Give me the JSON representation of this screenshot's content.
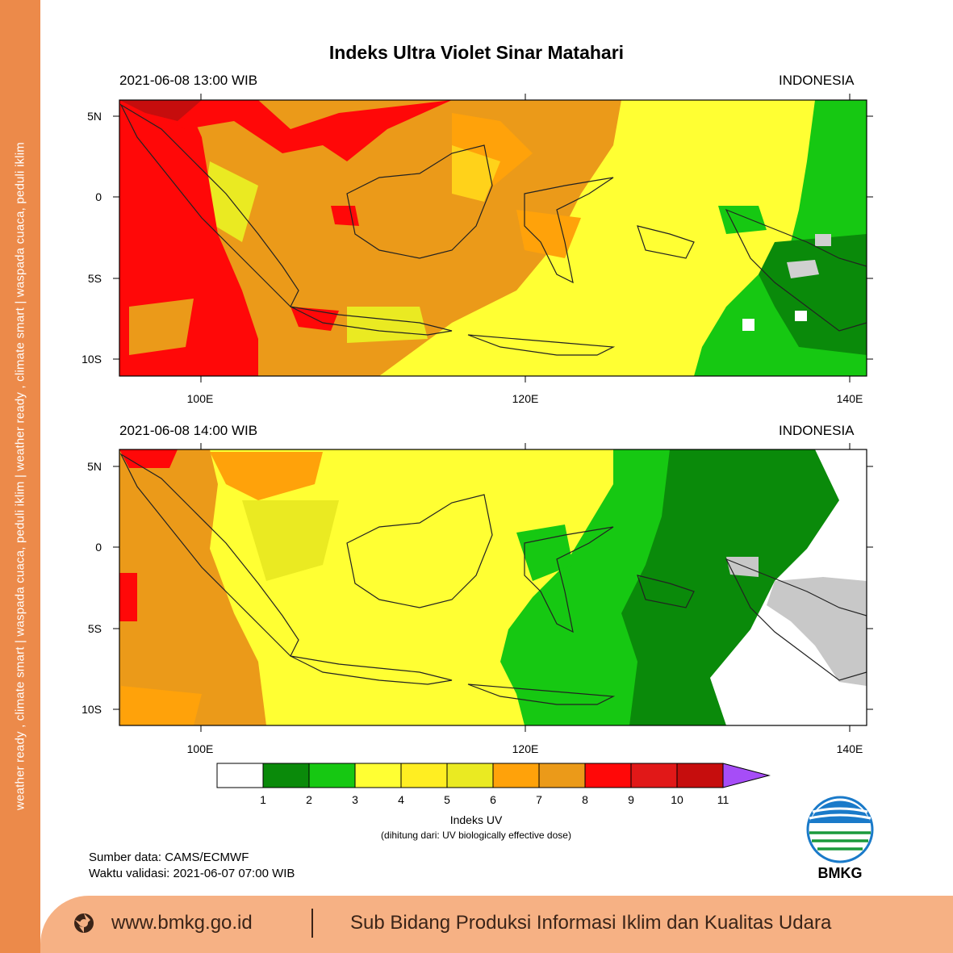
{
  "sidebar": {
    "text": "weather ready , climate smart  |  waspada cuaca, peduli iklim  |  weather ready , climate smart  |  waspada cuaca, peduli iklim"
  },
  "title": "Indeks Ultra Violet Sinar Matahari",
  "panels": [
    {
      "datetime": "2021-06-08  13:00 WIB",
      "region": "INDONESIA"
    },
    {
      "datetime": "2021-06-08  14:00 WIB",
      "region": "INDONESIA"
    }
  ],
  "lat_labels": [
    "5N",
    "0",
    "5S",
    "10S"
  ],
  "lon_labels": [
    "100E",
    "120E",
    "140E"
  ],
  "colorbar": {
    "title": "Indeks UV",
    "subtitle": "(dihitung dari: UV biologically effective dose)",
    "ticks": [
      "1",
      "2",
      "3",
      "4",
      "5",
      "6",
      "7",
      "8",
      "9",
      "10",
      "11"
    ],
    "colors": [
      "#ffffff",
      "#0a8a0a",
      "#16c812",
      "#ffff33",
      "#ffee22",
      "#eaea22",
      "#ffa20a",
      "#eb9a19",
      "#ff0808",
      "#e11818",
      "#c60d0d",
      "#a64df7"
    ]
  },
  "source": "Sumber data: CAMS/ECMWF",
  "validity": "Waktu validasi: 2021-06-07 07:00 WIB",
  "logo": {
    "text": "BMKG",
    "icon": "bmkg-logo-icon"
  },
  "footer": {
    "url": "www.bmkg.go.id",
    "credit": "Sub Bidang Produksi Informasi Iklim dan Kualitas Udara",
    "icon": "globe-icon"
  }
}
